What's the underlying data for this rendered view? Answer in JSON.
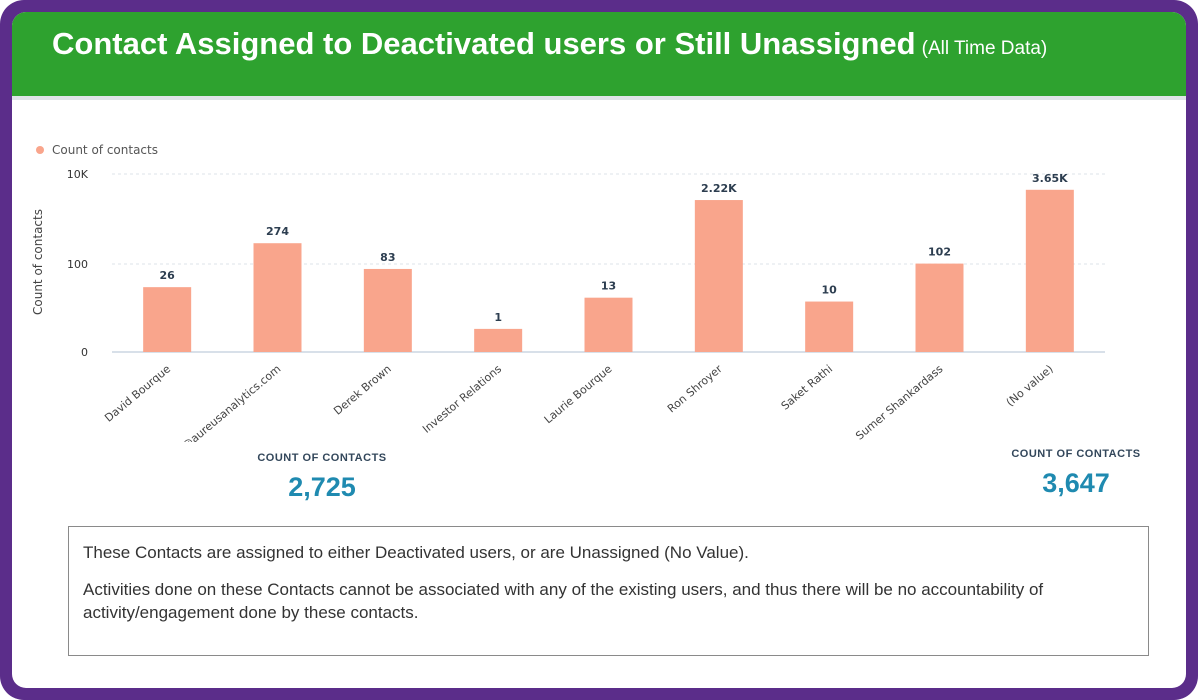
{
  "header": {
    "title": "Contact Assigned to Deactivated users or Still Unassigned",
    "subtitle": "(All Time Data)"
  },
  "chart_data": {
    "type": "bar",
    "legend": {
      "label": "Count of contacts",
      "placement": "top-left"
    },
    "ylabel": "Count of contacts",
    "yticks": [
      "10K",
      "100",
      "0"
    ],
    "grid": true,
    "categories": [
      "David Bourque",
      "David david@aureusanalytics.com",
      "Derek Brown",
      "Investor Relations",
      "Laurie Bourque",
      "Ron Shroyer",
      "Saket Rathi",
      "Sumer Shankardass",
      "(No value)"
    ],
    "values": [
      26,
      274,
      83,
      1,
      13,
      2220,
      10,
      102,
      3650
    ],
    "value_labels": [
      "26",
      "274",
      "83",
      "1",
      "13",
      "2.22K",
      "10",
      "102",
      "3.65K"
    ],
    "bar_color": "#f9a58c"
  },
  "stats": [
    {
      "label": "COUNT OF CONTACTS",
      "value": "2,725"
    },
    {
      "label": "COUNT OF CONTACTS",
      "value": "3,647"
    }
  ],
  "note": {
    "line1": "These Contacts are assigned to either Deactivated users, or are Unassigned (No Value).",
    "line2": "Activities done on these Contacts cannot be associated with any of the existing users, and thus there will be no accountability of activity/engagement done by these contacts."
  }
}
